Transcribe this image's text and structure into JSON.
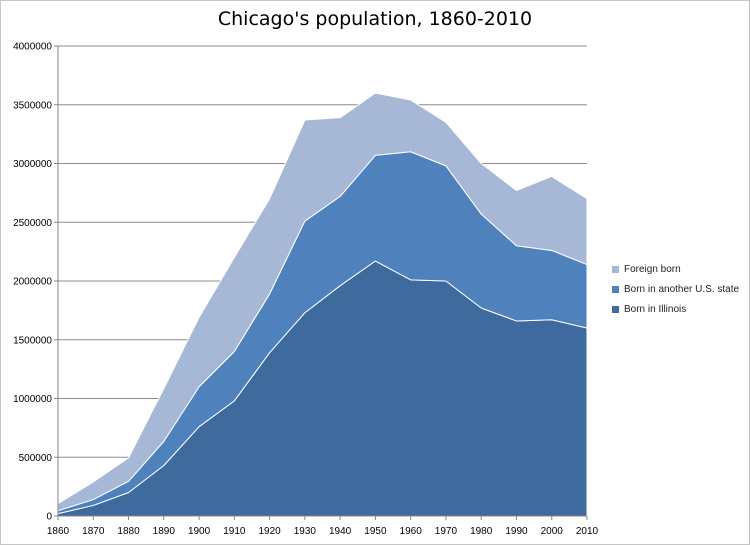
{
  "chart_data": {
    "type": "area",
    "stacked": true,
    "title": "Chicago's population, 1860-2010",
    "xlabel": "",
    "ylabel": "",
    "x": [
      "1860",
      "1870",
      "1880",
      "1890",
      "1900",
      "1910",
      "1920",
      "1930",
      "1940",
      "1950",
      "1960",
      "1970",
      "1980",
      "1990",
      "2000",
      "2010"
    ],
    "ylim": [
      0,
      4000000
    ],
    "yticks": [
      "0",
      "500000",
      "1000000",
      "1500000",
      "2000000",
      "2500000",
      "3000000",
      "3500000",
      "4000000"
    ],
    "grid": true,
    "legend_position": "right",
    "series": [
      {
        "name": "Born in Illinois",
        "color": "#3f6a9e",
        "values": [
          20000,
          90000,
          200000,
          430000,
          760000,
          980000,
          1390000,
          1730000,
          1960000,
          2170000,
          2010000,
          2000000,
          1770000,
          1660000,
          1670000,
          1600000
        ]
      },
      {
        "name": "Born in another U.S. state",
        "color": "#4f81bd",
        "values": [
          25000,
          50000,
          95000,
          205000,
          340000,
          420000,
          500000,
          780000,
          760000,
          900000,
          1090000,
          980000,
          800000,
          640000,
          590000,
          540000
        ]
      },
      {
        "name": "Foreign born",
        "color": "#a7b8d6",
        "values": [
          60000,
          150000,
          200000,
          450000,
          590000,
          800000,
          810000,
          860000,
          670000,
          530000,
          440000,
          370000,
          430000,
          470000,
          630000,
          560000
        ]
      }
    ],
    "legend_order": [
      "Foreign born",
      "Born in another U.S. state",
      "Born in Illinois"
    ]
  }
}
